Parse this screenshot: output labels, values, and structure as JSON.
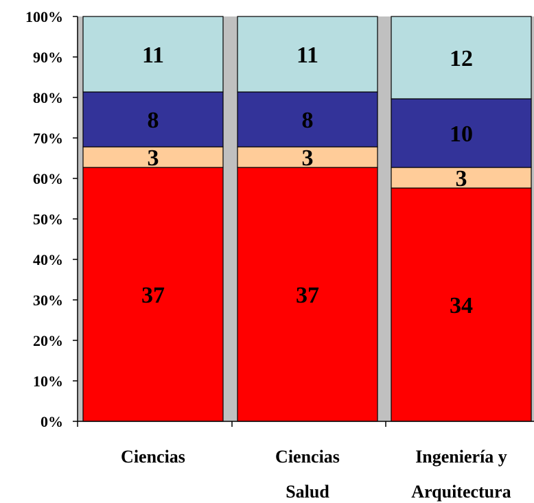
{
  "chart_data": {
    "type": "bar",
    "stacked": true,
    "percent_stacked": true,
    "categories": [
      [
        "Ciencias"
      ],
      [
        "Ciencias",
        "Salud"
      ],
      [
        "Ingeniería y",
        "Arquitectura"
      ]
    ],
    "series": [
      {
        "values": [
          37,
          37,
          34
        ],
        "color": "#ff0000"
      },
      {
        "values": [
          3,
          3,
          3
        ],
        "color": "#ffcc99"
      },
      {
        "values": [
          8,
          8,
          10
        ],
        "color": "#333399"
      },
      {
        "values": [
          11,
          11,
          12
        ],
        "color": "#b7dde0"
      }
    ],
    "yticks": [
      "0%",
      "10%",
      "20%",
      "30%",
      "40%",
      "50%",
      "60%",
      "70%",
      "80%",
      "90%",
      "100%"
    ],
    "ylim": [
      0,
      100
    ],
    "plot_background": "#c0c0c0",
    "grid": false,
    "legend": "none"
  }
}
